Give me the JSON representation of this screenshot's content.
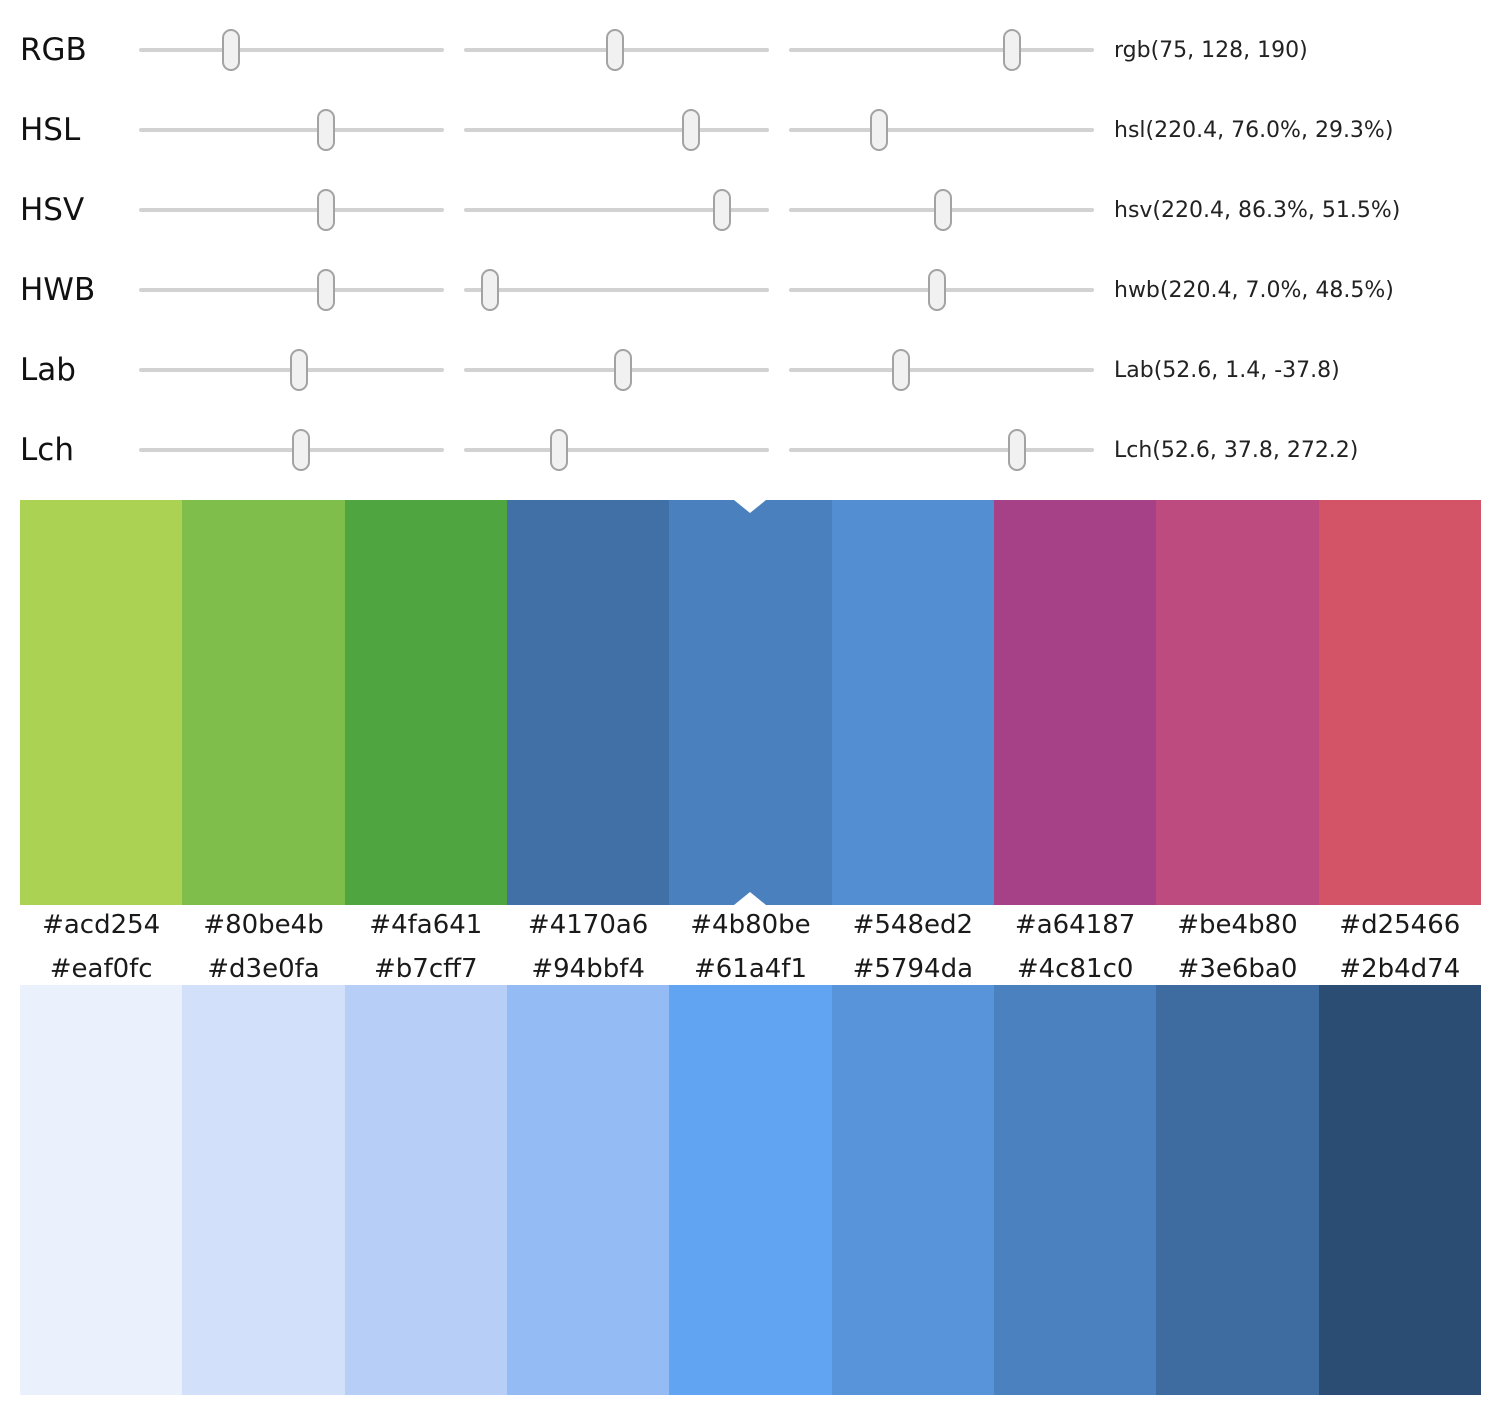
{
  "sliders": {
    "rows": [
      {
        "label": "RGB",
        "value": "rgb(75, 128, 190)",
        "positions": [
          30.0,
          49.5,
          73.0
        ]
      },
      {
        "label": "HSL",
        "value": "hsl(220.4, 76.0%, 29.3%)",
        "positions": [
          61.2,
          74.5,
          29.5
        ]
      },
      {
        "label": "HSV",
        "value": "hsv(220.4, 86.3%, 51.5%)",
        "positions": [
          61.2,
          84.5,
          50.5
        ]
      },
      {
        "label": "HWB",
        "value": "hwb(220.4, 7.0%, 48.5%)",
        "positions": [
          61.2,
          8.5,
          48.5
        ]
      },
      {
        "label": "Lab",
        "value": "Lab(52.6, 1.4, -37.8)",
        "positions": [
          52.3,
          52.0,
          36.6
        ]
      },
      {
        "label": "Lch",
        "value": "Lch(52.6, 37.8, 272.2)",
        "positions": [
          53.0,
          31.2,
          74.7
        ]
      }
    ]
  },
  "hue_palette": {
    "selected_index": 4,
    "swatches": [
      "#acd254",
      "#80be4b",
      "#4fa641",
      "#4170a6",
      "#4b80be",
      "#548ed2",
      "#a64187",
      "#be4b80",
      "#d25466"
    ]
  },
  "shade_palette": {
    "swatches": [
      "#eaf0fc",
      "#d3e0fa",
      "#b7cff7",
      "#94bbf4",
      "#61a4f1",
      "#5794da",
      "#4c81c0",
      "#3e6ba0",
      "#2b4d74"
    ]
  },
  "ui_colors": {
    "track": "#d2d2d2",
    "thumb_fill": "#f1f1f1",
    "thumb_border": "#a3a3a3",
    "marker": "#ffffff",
    "background": "#ffffff",
    "text": "#1a1a1a"
  }
}
